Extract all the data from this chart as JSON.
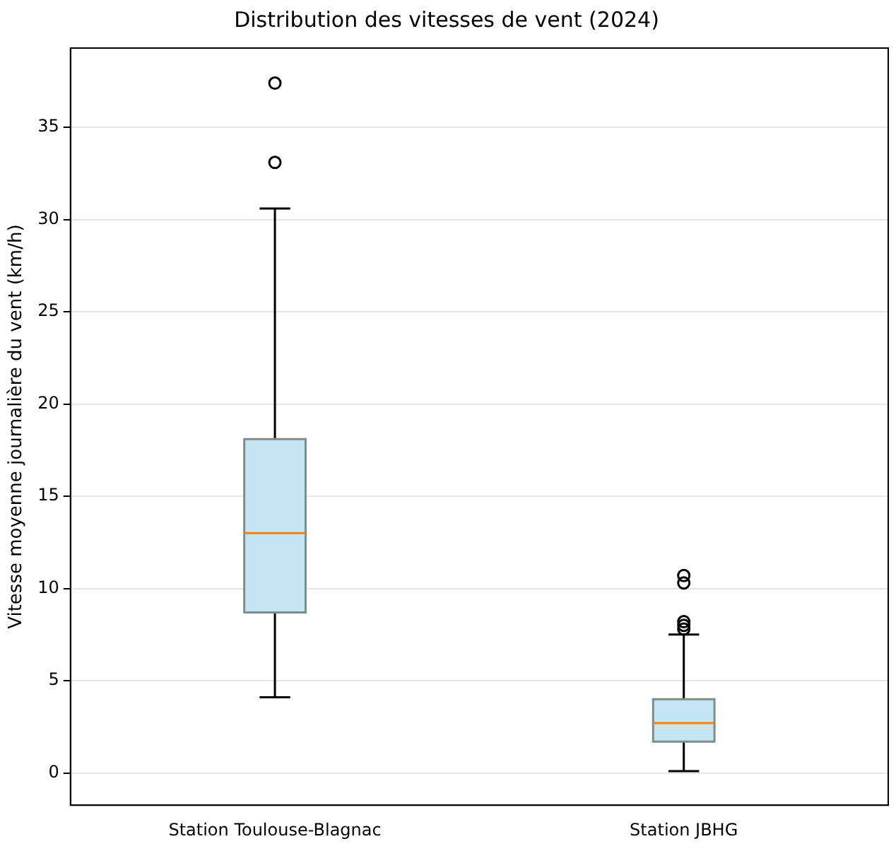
{
  "chart_data": {
    "type": "box",
    "title": "Distribution des vitesses de vent (2024)",
    "ylabel": "Vitesse moyenne journalière du vent (km/h)",
    "categories": [
      "Station Toulouse-Blagnac",
      "Station JBHG"
    ],
    "boxes": [
      {
        "low": 4.1,
        "q1": 8.7,
        "median": 13.0,
        "q3": 18.1,
        "high": 30.6,
        "outliers": [
          33.1,
          37.4
        ]
      },
      {
        "low": 0.1,
        "q1": 1.7,
        "median": 2.7,
        "q3": 4.0,
        "high": 7.5,
        "outliers": [
          7.8,
          8.0,
          8.2,
          10.3,
          10.7
        ]
      }
    ],
    "color": "#c4e6f3",
    "ylim": [
      -1.75,
      39.3
    ],
    "yticks": [
      0,
      5,
      10,
      15,
      20,
      25,
      30,
      35
    ],
    "grid": "y",
    "legend": false
  }
}
